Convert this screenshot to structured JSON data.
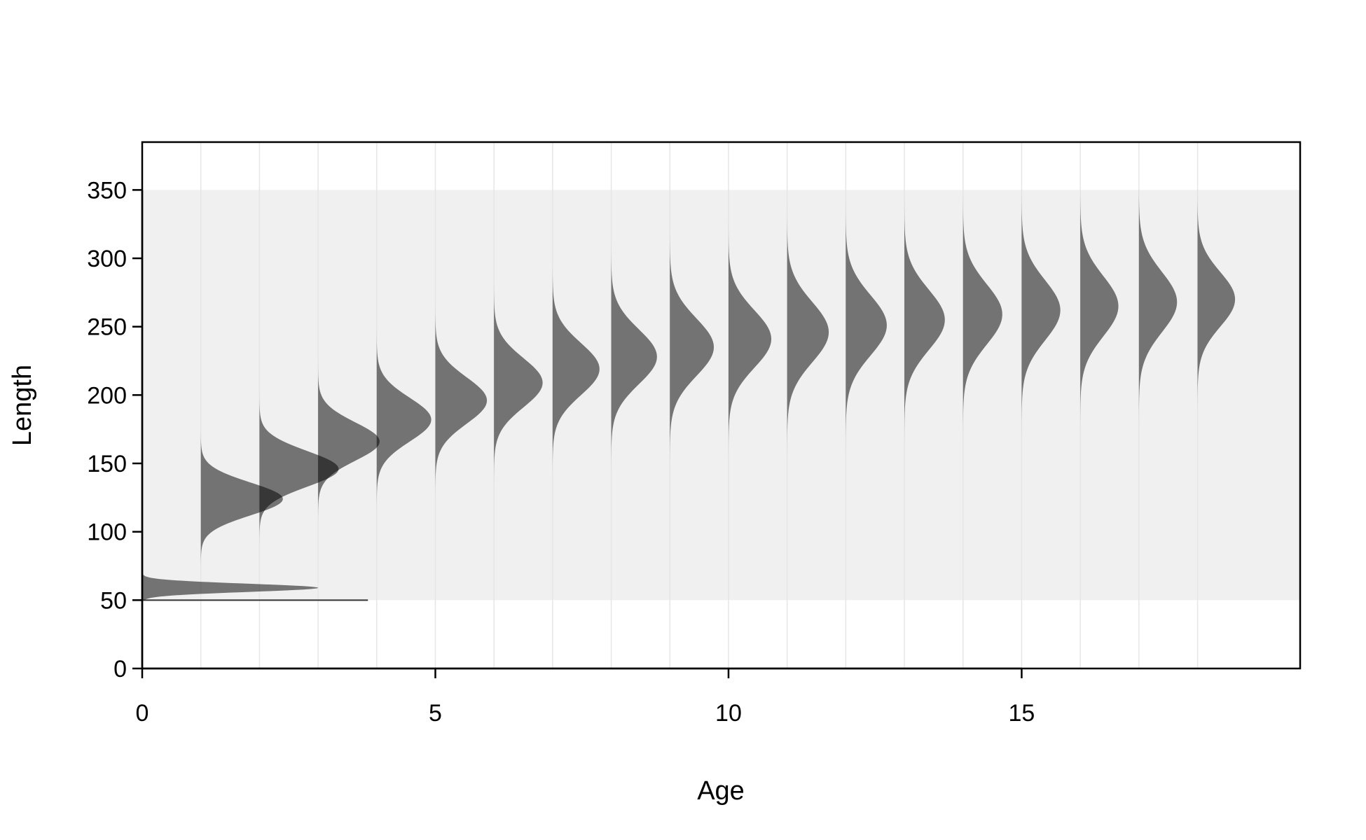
{
  "chart_data": {
    "type": "area",
    "xlabel": "Age",
    "ylabel": "Length",
    "xlim": [
      0,
      19.75
    ],
    "ylim": [
      0,
      385
    ],
    "x_ticks": [
      0,
      5,
      10,
      15
    ],
    "y_ticks": [
      0,
      50,
      100,
      150,
      200,
      250,
      300,
      350
    ],
    "length_range": [
      50,
      350
    ],
    "grid": true,
    "colors": {
      "density_fill": "#000000",
      "density_opacity": 0.52,
      "band": "#f0f0f0",
      "gridline": "#e6e6e6"
    },
    "series": [
      {
        "age": 0,
        "mean": 59,
        "sd": 3,
        "height": 3.0
      },
      {
        "age": 1,
        "mean": 124,
        "sd": 12,
        "height": 1.4
      },
      {
        "age": 2,
        "mean": 146,
        "sd": 13,
        "height": 1.35
      },
      {
        "age": 3,
        "mean": 166,
        "sd": 14,
        "height": 1.05
      },
      {
        "age": 4,
        "mean": 182,
        "sd": 16,
        "height": 0.93
      },
      {
        "age": 5,
        "mean": 196,
        "sd": 17,
        "height": 0.88
      },
      {
        "age": 6,
        "mean": 209,
        "sd": 18,
        "height": 0.83
      },
      {
        "age": 7,
        "mean": 219,
        "sd": 19,
        "height": 0.8
      },
      {
        "age": 8,
        "mean": 228,
        "sd": 20,
        "height": 0.78
      },
      {
        "age": 9,
        "mean": 235,
        "sd": 21,
        "height": 0.75
      },
      {
        "age": 10,
        "mean": 241,
        "sd": 21,
        "height": 0.73
      },
      {
        "age": 11,
        "mean": 246,
        "sd": 22,
        "height": 0.71
      },
      {
        "age": 12,
        "mean": 251,
        "sd": 22,
        "height": 0.7
      },
      {
        "age": 13,
        "mean": 255,
        "sd": 22,
        "height": 0.69
      },
      {
        "age": 14,
        "mean": 259,
        "sd": 22,
        "height": 0.67
      },
      {
        "age": 15,
        "mean": 262,
        "sd": 22,
        "height": 0.66
      },
      {
        "age": 16,
        "mean": 265,
        "sd": 22,
        "height": 0.65
      },
      {
        "age": 17,
        "mean": 268,
        "sd": 22,
        "height": 0.65
      },
      {
        "age": 18,
        "mean": 270,
        "sd": 20,
        "height": 0.64
      }
    ]
  }
}
